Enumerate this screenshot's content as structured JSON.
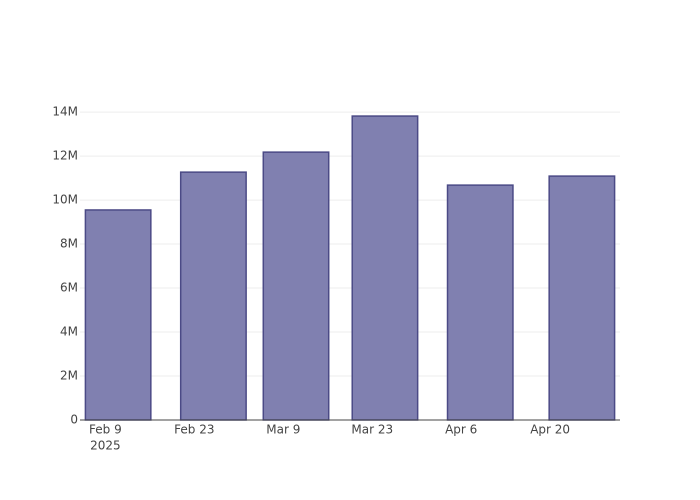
{
  "chart_data": {
    "type": "bar",
    "x": [
      "2025-02-11",
      "2025-02-26",
      "2025-03-11",
      "2025-03-25",
      "2025-04-09",
      "2025-04-25"
    ],
    "values": [
      9550000,
      11270000,
      12180000,
      13820000,
      10680000,
      11090000
    ],
    "color": "#8080b0",
    "xlim": [
      "2025-02-05",
      "2025-05-01"
    ],
    "xticks": [
      {
        "value": "2025-02-09",
        "label": "Feb 9"
      },
      {
        "value": "2025-02-23",
        "label": "Feb 23"
      },
      {
        "value": "2025-03-09",
        "label": "Mar 9"
      },
      {
        "value": "2025-03-23",
        "label": "Mar 23"
      },
      {
        "value": "2025-04-06",
        "label": "Apr 6"
      },
      {
        "value": "2025-04-20",
        "label": "Apr 20"
      }
    ],
    "x_year_label": "2025",
    "ylim": [
      0,
      14550000
    ],
    "yticks": [
      0,
      {
        "value": 2000000,
        "label": "2M"
      },
      {
        "value": 4000000,
        "label": "4M"
      },
      {
        "value": 6000000,
        "label": "6M"
      },
      {
        "value": 8000000,
        "label": "8M"
      },
      {
        "value": 10000000,
        "label": "10M"
      },
      {
        "value": 12000000,
        "label": "12M"
      },
      {
        "value": 14000000,
        "label": "14M"
      }
    ],
    "grid": true
  }
}
